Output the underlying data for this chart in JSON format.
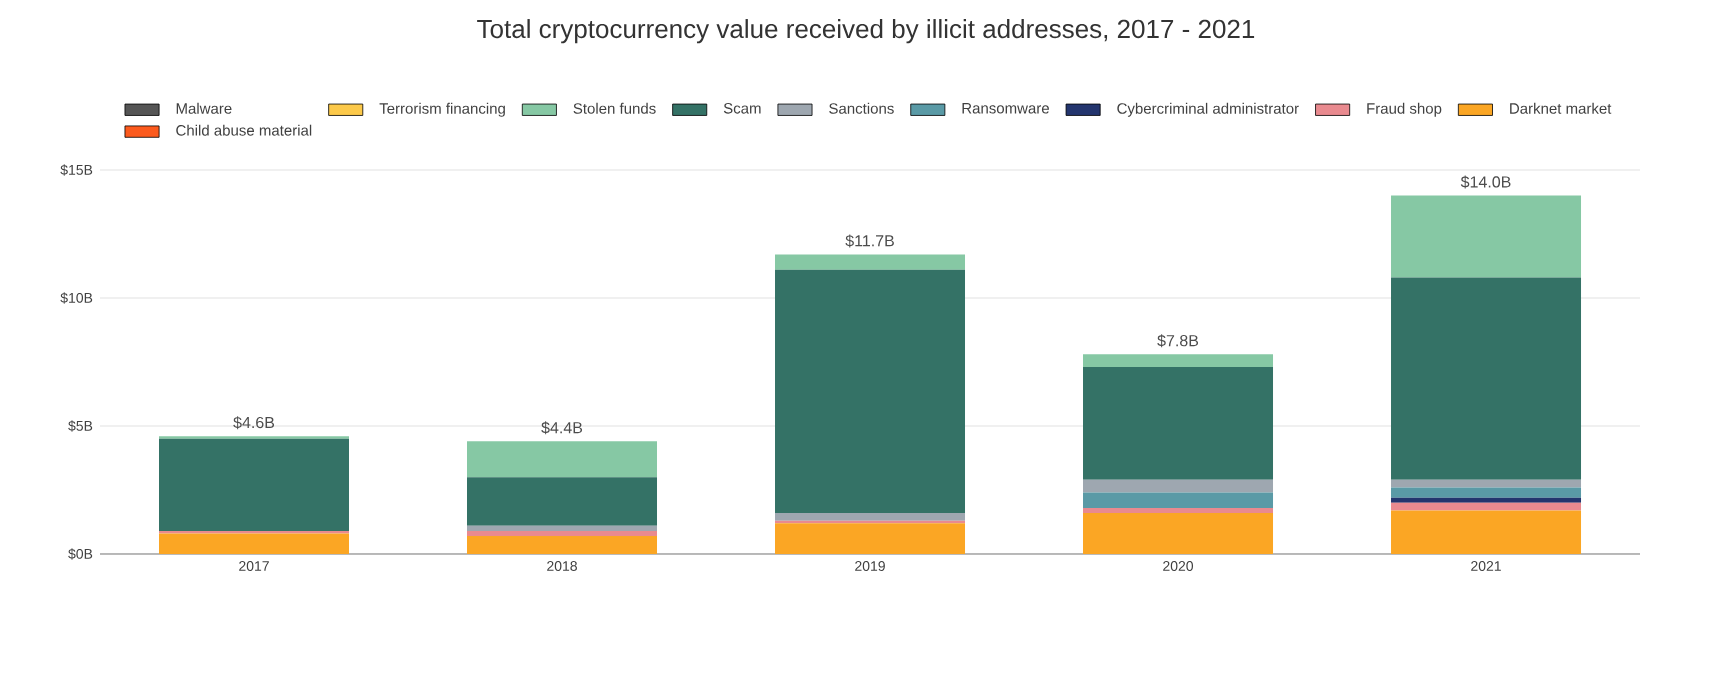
{
  "chart_data": {
    "type": "bar",
    "stacked": true,
    "title": "Total cryptocurrency value received by illicit addresses, 2017 - 2021",
    "categories": [
      "2017",
      "2018",
      "2019",
      "2020",
      "2021"
    ],
    "series": [
      {
        "name": "Child abuse material",
        "color": "#fc5a1d",
        "values": [
          0,
          0,
          0,
          0,
          0
        ]
      },
      {
        "name": "Darknet market",
        "color": "#fba624",
        "values": [
          0.8,
          0.7,
          1.2,
          1.6,
          1.7
        ]
      },
      {
        "name": "Fraud shop",
        "color": "#e98a8f",
        "values": [
          0.1,
          0.2,
          0.1,
          0.2,
          0.3
        ]
      },
      {
        "name": "Cybercriminal administrator",
        "color": "#23356e",
        "values": [
          0,
          0,
          0,
          0,
          0.2
        ]
      },
      {
        "name": "Ransomware",
        "color": "#5a9aa6",
        "values": [
          0,
          0,
          0,
          0.6,
          0.4
        ]
      },
      {
        "name": "Sanctions",
        "color": "#9ea7b0",
        "values": [
          0,
          0.2,
          0.3,
          0.5,
          0.3
        ]
      },
      {
        "name": "Scam",
        "color": "#347266",
        "values": [
          3.6,
          1.9,
          9.5,
          4.4,
          7.9
        ]
      },
      {
        "name": "Stolen funds",
        "color": "#86c8a4",
        "values": [
          0.1,
          1.4,
          0.6,
          0.5,
          3.2
        ]
      },
      {
        "name": "Terrorism financing",
        "color": "#fcc94a",
        "values": [
          0,
          0,
          0,
          0,
          0
        ]
      },
      {
        "name": "Malware",
        "color": "#555555",
        "values": [
          0,
          0,
          0,
          0,
          0
        ]
      }
    ],
    "totals": [
      "$4.6B",
      "$4.4B",
      "$11.7B",
      "$7.8B",
      "$14.0B"
    ],
    "ylim": [
      0,
      15
    ],
    "yticks": [
      {
        "value": 0,
        "label": "$0B"
      },
      {
        "value": 5,
        "label": "$5B"
      },
      {
        "value": 10,
        "label": "$10B"
      },
      {
        "value": 15,
        "label": "$15B"
      }
    ],
    "grid": "y",
    "legend": "top"
  }
}
